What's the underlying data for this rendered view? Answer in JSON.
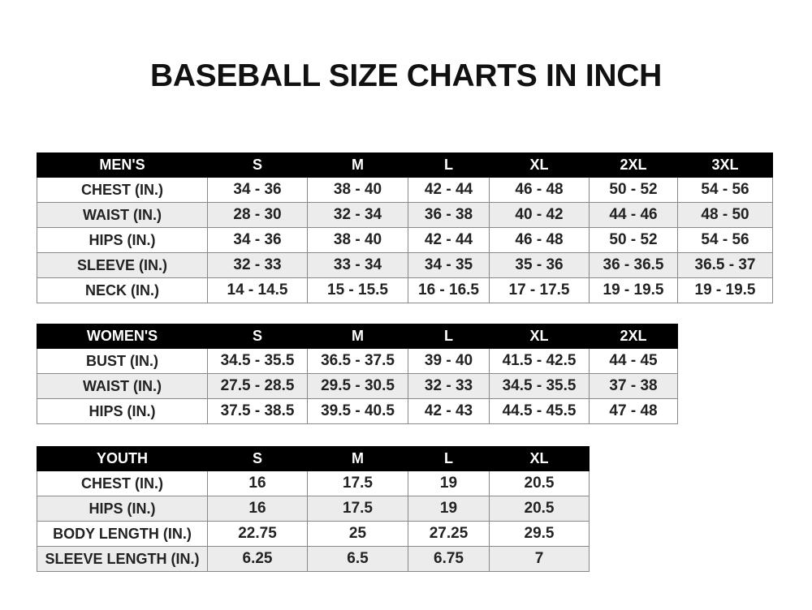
{
  "title": "BASEBALL SIZE CHARTS IN INCH",
  "men": {
    "headers": [
      "MEN'S",
      "S",
      "M",
      "L",
      "XL",
      "2XL",
      "3XL"
    ],
    "rows": [
      [
        "CHEST (IN.)",
        "34 - 36",
        "38 - 40",
        "42 - 44",
        "46 - 48",
        "50 - 52",
        "54 - 56"
      ],
      [
        "WAIST (IN.)",
        "28 - 30",
        "32 - 34",
        "36 - 38",
        "40 - 42",
        "44 - 46",
        "48 - 50"
      ],
      [
        "HIPS (IN.)",
        "34 - 36",
        "38 - 40",
        "42 - 44",
        "46 - 48",
        "50 - 52",
        "54 - 56"
      ],
      [
        "SLEEVE (IN.)",
        "32 - 33",
        "33 - 34",
        "34 - 35",
        "35 - 36",
        "36 - 36.5",
        "36.5 - 37"
      ],
      [
        "NECK (IN.)",
        "14 - 14.5",
        "15 - 15.5",
        "16 - 16.5",
        "17 - 17.5",
        "19 - 19.5",
        "19 - 19.5"
      ]
    ]
  },
  "women": {
    "headers": [
      "WOMEN'S",
      "S",
      "M",
      "L",
      "XL",
      "2XL"
    ],
    "rows": [
      [
        "BUST (IN.)",
        "34.5 - 35.5",
        "36.5 - 37.5",
        "39 - 40",
        "41.5 - 42.5",
        "44 - 45"
      ],
      [
        "WAIST (IN.)",
        "27.5 - 28.5",
        "29.5 - 30.5",
        "32 - 33",
        "34.5 - 35.5",
        "37 - 38"
      ],
      [
        "HIPS (IN.)",
        "37.5 - 38.5",
        "39.5 - 40.5",
        "42 - 43",
        "44.5 - 45.5",
        "47 - 48"
      ]
    ]
  },
  "youth": {
    "headers": [
      "YOUTH",
      "S",
      "M",
      "L",
      "XL"
    ],
    "rows": [
      [
        "CHEST (IN.)",
        "16",
        "17.5",
        "19",
        "20.5"
      ],
      [
        "HIPS (IN.)",
        "16",
        "17.5",
        "19",
        "20.5"
      ],
      [
        "BODY LENGTH (IN.)",
        "22.75",
        "25",
        "27.25",
        "29.5"
      ],
      [
        "SLEEVE LENGTH (IN.)",
        "6.25",
        "6.5",
        "6.75",
        "7"
      ]
    ]
  }
}
